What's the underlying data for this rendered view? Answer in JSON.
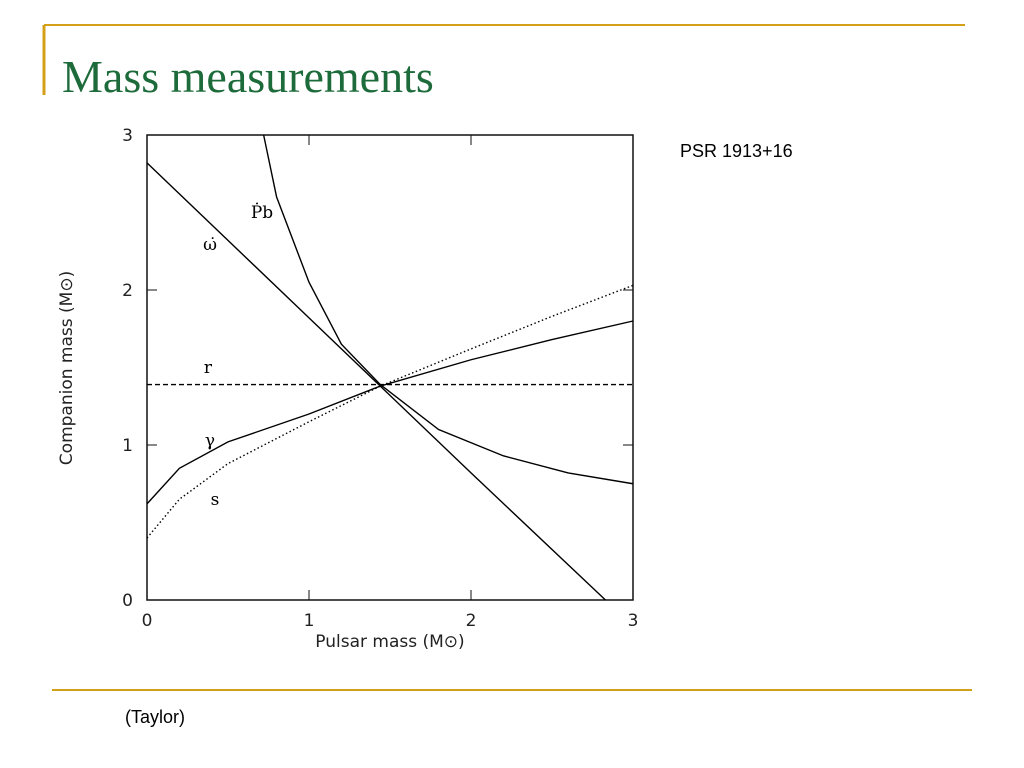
{
  "slide": {
    "title": "Mass measurements",
    "note": "PSR 1913+16",
    "source": "(Taylor)"
  },
  "chart_data": {
    "type": "line",
    "xlabel": "Pulsar mass (M⊙)",
    "ylabel": "Companion mass (M⊙)",
    "xlim": [
      0,
      3
    ],
    "ylim": [
      0,
      3
    ],
    "xticks": [
      0,
      1,
      2,
      3
    ],
    "yticks": [
      0,
      1,
      2,
      3
    ],
    "series": [
      {
        "name": "ω̇",
        "color": "#000000",
        "style": "solid",
        "x": [
          0,
          1,
          2,
          2.83
        ],
        "values": [
          2.82,
          1.82,
          0.82,
          0
        ]
      },
      {
        "name": "Ṗb",
        "color": "#000000",
        "style": "solid",
        "x": [
          0.72,
          0.8,
          1.0,
          1.2,
          1.44,
          1.8,
          2.2,
          2.6,
          3
        ],
        "values": [
          3,
          2.6,
          2.05,
          1.65,
          1.39,
          1.1,
          0.93,
          0.82,
          0.75
        ]
      },
      {
        "name": "r",
        "color": "#000000",
        "style": "dashed",
        "x": [
          0,
          3
        ],
        "values": [
          1.39,
          1.39
        ]
      },
      {
        "name": "γ",
        "color": "#000000",
        "style": "solid",
        "x": [
          0,
          0.2,
          0.5,
          1,
          1.44,
          2,
          2.5,
          3
        ],
        "values": [
          0.62,
          0.85,
          1.02,
          1.2,
          1.38,
          1.55,
          1.68,
          1.8
        ]
      },
      {
        "name": "s",
        "color": "#000000",
        "style": "dotted",
        "x": [
          0,
          0.2,
          0.5,
          1,
          1.44,
          2,
          2.5,
          3
        ],
        "values": [
          0.4,
          0.65,
          0.88,
          1.15,
          1.38,
          1.62,
          1.83,
          2.03
        ]
      }
    ]
  }
}
